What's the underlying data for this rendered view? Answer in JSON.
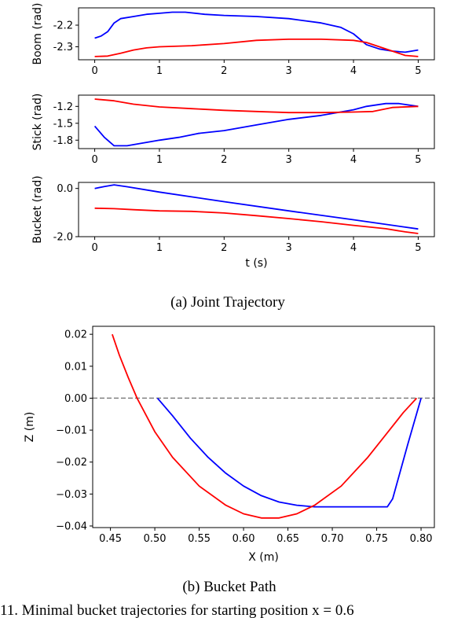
{
  "captions": {
    "a": "(a) Joint Trajectory",
    "b": "(b) Bucket Path",
    "bottom": "11. Minimal bucket trajectories for starting position x = 0.6"
  },
  "colors": {
    "series1": "#0000ff",
    "series2": "#ff0000",
    "zero_line": "#808080"
  },
  "chart_data": [
    {
      "type": "line",
      "ylabel": "Boom (rad)",
      "xlabel": "",
      "xlim": [
        -0.25,
        5.25
      ],
      "ylim": [
        -2.36,
        -2.12
      ],
      "xticks": [
        "0",
        "1",
        "2",
        "3",
        "4",
        "5"
      ],
      "yticks": [
        {
          "v": -2.2,
          "label": "-2.2"
        },
        {
          "v": -2.3,
          "label": "-2.3"
        }
      ],
      "series": [
        {
          "color": "#0000ff",
          "x": [
            0,
            0.1,
            0.2,
            0.3,
            0.4,
            0.6,
            0.8,
            1.0,
            1.2,
            1.4,
            1.7,
            2.0,
            2.5,
            3.0,
            3.5,
            3.8,
            4.0,
            4.2,
            4.4,
            4.6,
            4.8,
            5.0
          ],
          "y": [
            -2.26,
            -2.25,
            -2.23,
            -2.19,
            -2.17,
            -2.16,
            -2.15,
            -2.145,
            -2.14,
            -2.14,
            -2.15,
            -2.155,
            -2.16,
            -2.17,
            -2.19,
            -2.21,
            -2.24,
            -2.29,
            -2.31,
            -2.32,
            -2.325,
            -2.315
          ]
        },
        {
          "color": "#ff0000",
          "x": [
            0,
            0.2,
            0.4,
            0.6,
            0.8,
            1.0,
            1.5,
            2.0,
            2.5,
            3.0,
            3.5,
            4.0,
            4.2,
            4.4,
            4.6,
            4.8,
            5.0
          ],
          "y": [
            -2.345,
            -2.343,
            -2.33,
            -2.315,
            -2.305,
            -2.3,
            -2.295,
            -2.285,
            -2.27,
            -2.265,
            -2.265,
            -2.27,
            -2.28,
            -2.3,
            -2.32,
            -2.34,
            -2.345
          ]
        }
      ]
    },
    {
      "type": "line",
      "ylabel": "Stick (rad)",
      "xlabel": "",
      "xlim": [
        -0.25,
        5.25
      ],
      "ylim": [
        -1.95,
        -1.0
      ],
      "xticks": [
        "0",
        "1",
        "2",
        "3",
        "4",
        "5"
      ],
      "yticks": [
        {
          "v": -1.2,
          "label": "-1.2"
        },
        {
          "v": -1.5,
          "label": "-1.5"
        },
        {
          "v": -1.8,
          "label": "-1.8"
        }
      ],
      "series": [
        {
          "color": "#0000ff",
          "x": [
            0,
            0.15,
            0.3,
            0.5,
            1.0,
            1.3,
            1.6,
            2.0,
            2.5,
            3.0,
            3.5,
            4.0,
            4.2,
            4.5,
            4.7,
            5.0
          ],
          "y": [
            -1.55,
            -1.75,
            -1.9,
            -1.9,
            -1.8,
            -1.75,
            -1.68,
            -1.63,
            -1.53,
            -1.43,
            -1.36,
            -1.26,
            -1.2,
            -1.15,
            -1.15,
            -1.2
          ]
        },
        {
          "color": "#ff0000",
          "x": [
            0,
            0.3,
            0.6,
            1.0,
            1.5,
            2.0,
            2.5,
            3.0,
            3.5,
            4.0,
            4.3,
            4.6,
            5.0
          ],
          "y": [
            -1.07,
            -1.1,
            -1.16,
            -1.21,
            -1.24,
            -1.27,
            -1.29,
            -1.31,
            -1.31,
            -1.3,
            -1.29,
            -1.22,
            -1.2
          ]
        }
      ]
    },
    {
      "type": "line",
      "ylabel": "Bucket (rad)",
      "xlabel": "t (s)",
      "xlim": [
        -0.25,
        5.25
      ],
      "ylim": [
        -2.0,
        0.25
      ],
      "xticks": [
        "0",
        "1",
        "2",
        "3",
        "4",
        "5"
      ],
      "yticks": [
        {
          "v": 0.0,
          "label": "0.0"
        },
        {
          "v": -2.0,
          "label": "-2.0"
        }
      ],
      "series": [
        {
          "color": "#0000ff",
          "x": [
            0,
            0.15,
            0.3,
            0.5,
            1.0,
            2.0,
            3.0,
            4.0,
            5.0
          ],
          "y": [
            0.0,
            0.08,
            0.15,
            0.07,
            -0.15,
            -0.55,
            -0.93,
            -1.3,
            -1.68
          ]
        },
        {
          "color": "#ff0000",
          "x": [
            0,
            0.3,
            0.6,
            1.0,
            1.5,
            2.0,
            2.5,
            3.0,
            3.5,
            4.0,
            4.5,
            4.8,
            5.0
          ],
          "y": [
            -0.82,
            -0.84,
            -0.88,
            -0.93,
            -0.95,
            -1.02,
            -1.13,
            -1.25,
            -1.38,
            -1.53,
            -1.67,
            -1.8,
            -1.87
          ]
        }
      ]
    },
    {
      "type": "line",
      "xlabel": "X (m)",
      "ylabel": "Z (m)",
      "xlim": [
        0.43,
        0.815
      ],
      "ylim": [
        -0.0405,
        0.0225
      ],
      "xticks": [
        {
          "v": 0.45,
          "label": "0.45"
        },
        {
          "v": 0.5,
          "label": "0.50"
        },
        {
          "v": 0.55,
          "label": "0.55"
        },
        {
          "v": 0.6,
          "label": "0.60"
        },
        {
          "v": 0.65,
          "label": "0.65"
        },
        {
          "v": 0.7,
          "label": "0.70"
        },
        {
          "v": 0.75,
          "label": "0.75"
        },
        {
          "v": 0.8,
          "label": "0.80"
        }
      ],
      "yticks": [
        {
          "v": 0.02,
          "label": "0.02"
        },
        {
          "v": 0.01,
          "label": "0.01"
        },
        {
          "v": 0.0,
          "label": "0.00"
        },
        {
          "v": -0.01,
          "label": "−0.01"
        },
        {
          "v": -0.02,
          "label": "−0.02"
        },
        {
          "v": -0.03,
          "label": "−0.03"
        },
        {
          "v": -0.04,
          "label": "−0.04"
        }
      ],
      "reference_line": {
        "y": 0.0,
        "style": "dashed"
      },
      "series": [
        {
          "color": "#0000ff",
          "x": [
            0.503,
            0.52,
            0.54,
            0.56,
            0.58,
            0.6,
            0.62,
            0.64,
            0.66,
            0.68,
            0.7,
            0.72,
            0.74,
            0.762,
            0.768,
            0.785,
            0.8
          ],
          "y": [
            0.0,
            -0.0055,
            -0.0125,
            -0.0185,
            -0.0235,
            -0.0275,
            -0.0305,
            -0.0325,
            -0.0335,
            -0.034,
            -0.034,
            -0.034,
            -0.034,
            -0.034,
            -0.0315,
            -0.0145,
            0.0
          ]
        },
        {
          "color": "#ff0000",
          "x": [
            0.452,
            0.46,
            0.47,
            0.48,
            0.5,
            0.52,
            0.55,
            0.58,
            0.6,
            0.62,
            0.64,
            0.66,
            0.68,
            0.71,
            0.74,
            0.76,
            0.78,
            0.795
          ],
          "y": [
            0.02,
            0.0135,
            0.0065,
            0.0,
            -0.0105,
            -0.0185,
            -0.0275,
            -0.0335,
            -0.0362,
            -0.0375,
            -0.0375,
            -0.0362,
            -0.0335,
            -0.0275,
            -0.0185,
            -0.0115,
            -0.0045,
            0.0
          ]
        }
      ]
    }
  ]
}
